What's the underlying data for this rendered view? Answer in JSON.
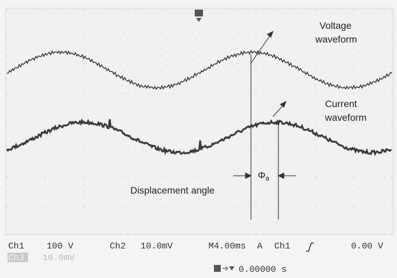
{
  "annotations": {
    "voltage_label": [
      "Voltage",
      "waveform"
    ],
    "current_label": [
      "Current",
      "waveform"
    ],
    "phase_symbol": "Φ",
    "phase_subscript": "a",
    "displacement_label": "Displacement angle"
  },
  "status": {
    "ch1": "Ch1",
    "ch1_scale": "100 V",
    "ch2": "Ch2",
    "ch2_scale": "10.0mV",
    "timebase": "M4.00ms",
    "trigger_mode": "A",
    "trigger_source": "Ch1",
    "trigger_level": "0.00 V",
    "ch3": "Ch3",
    "ch3_scale": "10.0mV",
    "trigger_position": "0.00000 s"
  }
}
